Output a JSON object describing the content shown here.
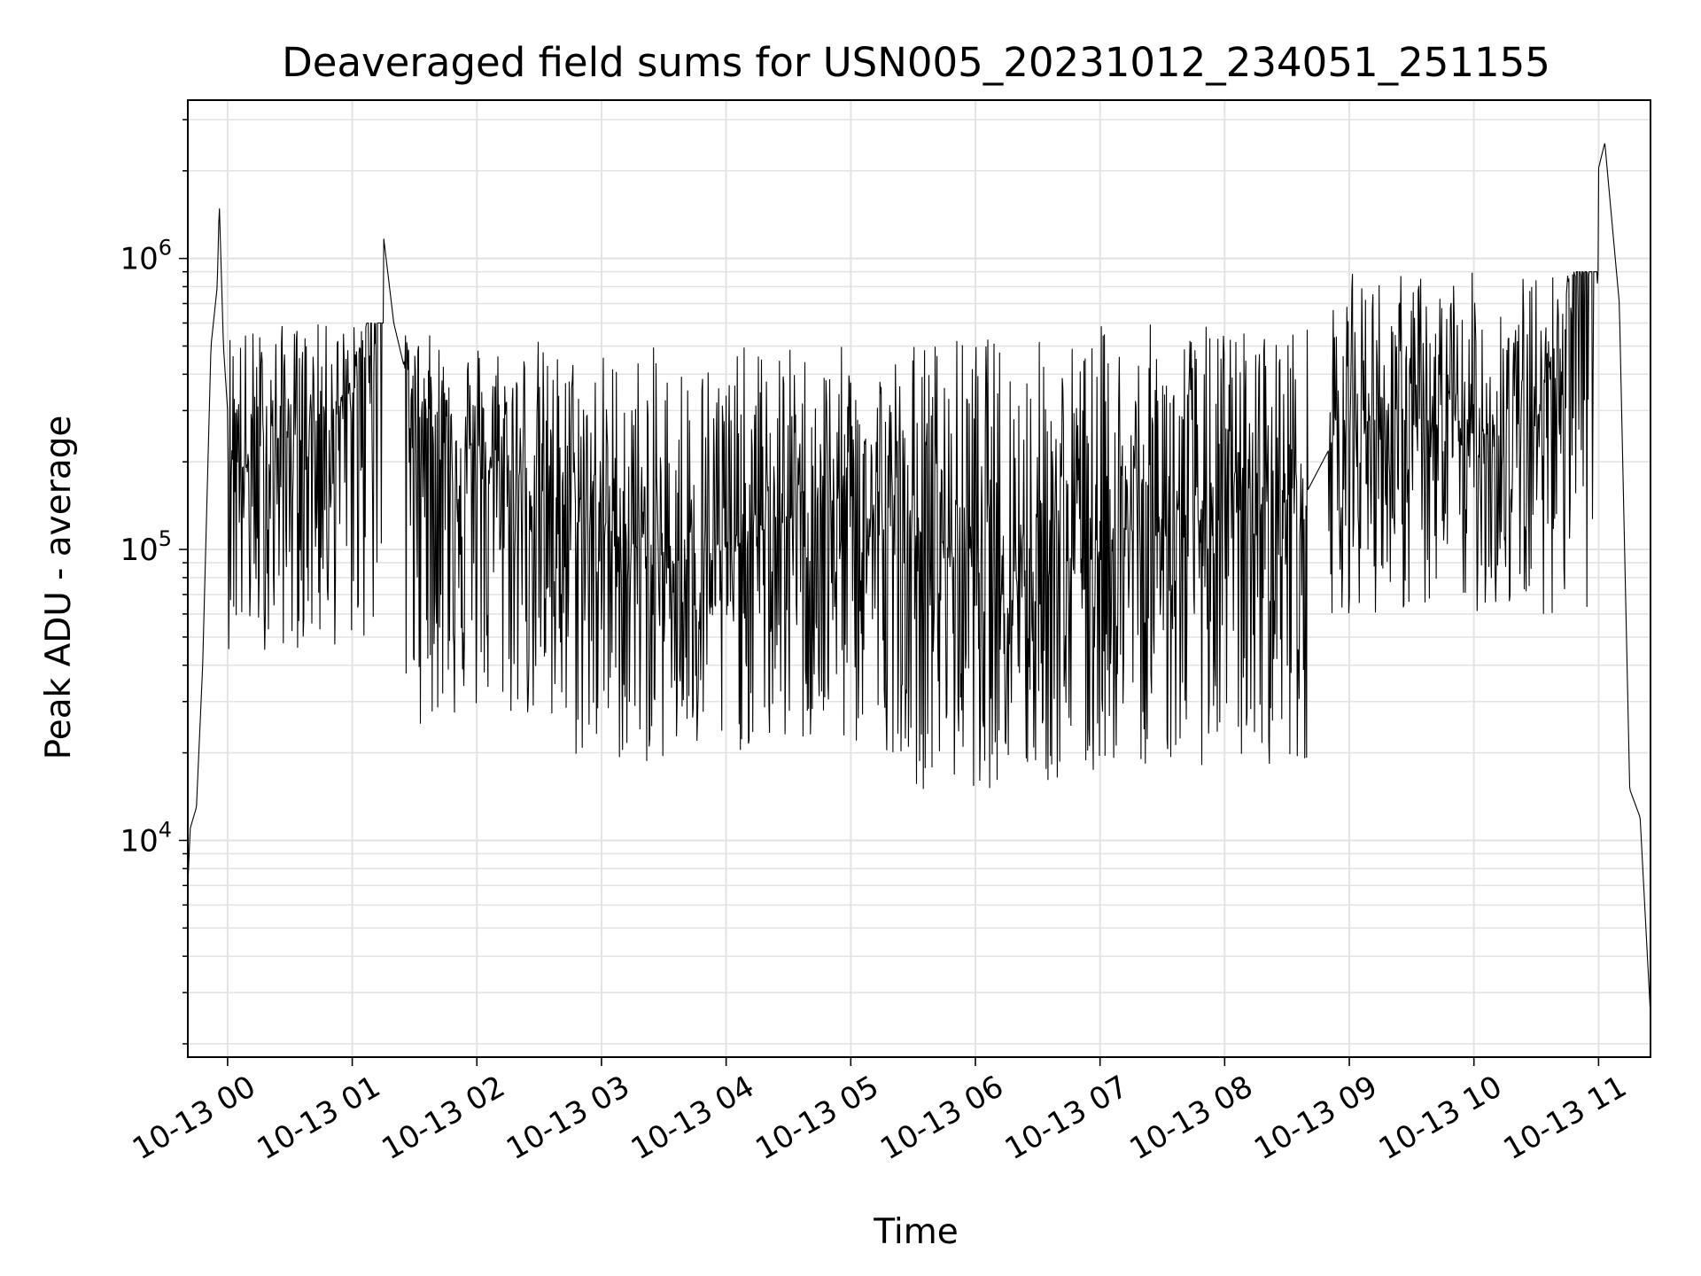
{
  "chart_data": {
    "type": "line",
    "title": "Deaveraged field sums for USN005_20231012_234051_251155",
    "xlabel": "Time",
    "ylabel": "Peak ADU - average",
    "y_scale": "log",
    "ylim": [
      1800,
      3500000
    ],
    "xlim": [
      "2023-10-12 23:40:51",
      "2023-10-13 11:25:00"
    ],
    "x_ticks": [
      {
        "label": "10-13 00",
        "t": "2023-10-13 00:00"
      },
      {
        "label": "10-13 01",
        "t": "2023-10-13 01:00"
      },
      {
        "label": "10-13 02",
        "t": "2023-10-13 02:00"
      },
      {
        "label": "10-13 03",
        "t": "2023-10-13 03:00"
      },
      {
        "label": "10-13 04",
        "t": "2023-10-13 04:00"
      },
      {
        "label": "10-13 05",
        "t": "2023-10-13 05:00"
      },
      {
        "label": "10-13 06",
        "t": "2023-10-13 06:00"
      },
      {
        "label": "10-13 07",
        "t": "2023-10-13 07:00"
      },
      {
        "label": "10-13 08",
        "t": "2023-10-13 08:00"
      },
      {
        "label": "10-13 09",
        "t": "2023-10-13 09:00"
      },
      {
        "label": "10-13 10",
        "t": "2023-10-13 10:00"
      },
      {
        "label": "10-13 11",
        "t": "2023-10-13 11:00"
      }
    ],
    "y_ticks": [
      {
        "base": "10",
        "exp": "4",
        "value": 10000
      },
      {
        "base": "10",
        "exp": "5",
        "value": 100000
      },
      {
        "base": "10",
        "exp": "6",
        "value": 1000000
      }
    ],
    "grid": true,
    "legend": "none",
    "line_color": "#000000",
    "envelope_note_free": true,
    "series": [
      {
        "points": [
          [
            "2023-10-12 23:40:51",
            7000
          ],
          [
            "2023-10-12 23:42",
            11000
          ],
          [
            "2023-10-12 23:45",
            13000
          ],
          [
            "2023-10-12 23:48",
            40000
          ],
          [
            "2023-10-12 23:52",
            500000
          ],
          [
            "2023-10-12 23:55",
            800000
          ],
          [
            "2023-10-12 23:56",
            1550000
          ],
          [
            "2023-10-12 23:58",
            500000
          ],
          [
            "2023-10-13 00:00",
            300000
          ],
          [
            "2023-10-13 00:10",
            180000
          ],
          [
            "2023-10-13 00:20",
            220000
          ],
          [
            "2023-10-13 00:30",
            250000
          ],
          [
            "2023-10-13 00:40",
            260000
          ],
          [
            "2023-10-13 00:50",
            300000
          ],
          [
            "2023-10-13 01:00",
            320000
          ],
          [
            "2023-10-13 01:15",
            1200000
          ],
          [
            "2023-10-13 01:20",
            600000
          ],
          [
            "2023-10-13 01:30",
            300000
          ],
          [
            "2023-10-13 02:00",
            200000
          ],
          [
            "2023-10-13 02:30",
            160000
          ],
          [
            "2023-10-13 03:00",
            120000
          ],
          [
            "2023-10-13 03:30",
            90000
          ],
          [
            "2023-10-13 04:00",
            100000
          ],
          [
            "2023-10-13 04:30",
            130000
          ],
          [
            "2023-10-13 05:00",
            130000
          ],
          [
            "2023-10-13 05:30",
            110000
          ],
          [
            "2023-10-13 06:00",
            100000
          ],
          [
            "2023-10-13 06:30",
            90000
          ],
          [
            "2023-10-13 07:00",
            110000
          ],
          [
            "2023-10-13 07:30",
            120000
          ],
          [
            "2023-10-13 08:00",
            130000
          ],
          [
            "2023-10-13 08:40",
            160000
          ],
          [
            "2023-10-13 09:00",
            300000
          ],
          [
            "2023-10-13 09:30",
            260000
          ],
          [
            "2023-10-13 10:00",
            250000
          ],
          [
            "2023-10-13 10:30",
            270000
          ],
          [
            "2023-10-13 11:03",
            2500000
          ],
          [
            "2023-10-13 11:10",
            700000
          ],
          [
            "2023-10-13 11:15",
            15000
          ],
          [
            "2023-10-13 11:20",
            12000
          ],
          [
            "2023-10-13 11:25",
            2500
          ]
        ],
        "envelope": [
          {
            "from": "2023-10-13 00:00",
            "to": "2023-10-13 01:15",
            "low": 45000,
            "high": 600000
          },
          {
            "from": "2023-10-13 01:25",
            "to": "2023-10-13 02:30",
            "low": 25000,
            "high": 550000
          },
          {
            "from": "2023-10-13 02:30",
            "to": "2023-10-13 04:00",
            "low": 18000,
            "high": 500000
          },
          {
            "from": "2023-10-13 04:00",
            "to": "2023-10-13 05:30",
            "low": 20000,
            "high": 500000
          },
          {
            "from": "2023-10-13 05:30",
            "to": "2023-10-13 07:00",
            "low": 15000,
            "high": 550000
          },
          {
            "from": "2023-10-13 07:00",
            "to": "2023-10-13 08:40",
            "low": 18000,
            "high": 600000
          },
          {
            "from": "2023-10-13 08:50",
            "to": "2023-10-13 11:00",
            "low": 60000,
            "high": 900000
          }
        ]
      }
    ]
  }
}
